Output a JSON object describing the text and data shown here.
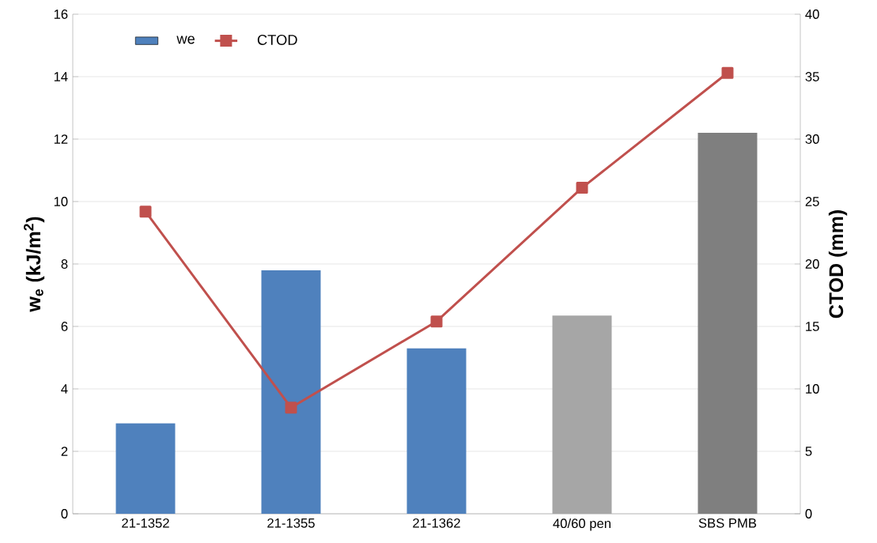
{
  "chart_data": {
    "type": "bar",
    "categories": [
      "21-1352",
      "21-1355",
      "21-1362",
      "40/60 pen",
      "SBS PMB"
    ],
    "ylabel": "w$_{e}$ (kJ/m$^{2}$)",
    "y2label": "CTOD (mm)",
    "series": [
      {
        "name": "we",
        "colors": [
          "#4f81bd",
          "#4f81bd",
          "#4f81bd",
          "#a6a6a6",
          "#7f7f7f"
        ],
        "values": [
          2.9,
          7.8,
          5.3,
          6.35,
          12.2
        ]
      },
      {
        "name": "CTOD",
        "type": "line",
        "axis": "y2",
        "color": "#c0504d",
        "marker": "square",
        "values": [
          24.2,
          8.5,
          15.4,
          26.1,
          35.3
        ]
      }
    ],
    "ylim": [
      0,
      16
    ],
    "yticks": [
      0,
      2,
      4,
      6,
      8,
      10,
      12,
      14,
      16
    ],
    "y2lim": [
      0,
      40
    ],
    "y2ticks": [
      0,
      5,
      10,
      15,
      20,
      25,
      30,
      35,
      40
    ],
    "grid": "y",
    "legend": "top left"
  }
}
